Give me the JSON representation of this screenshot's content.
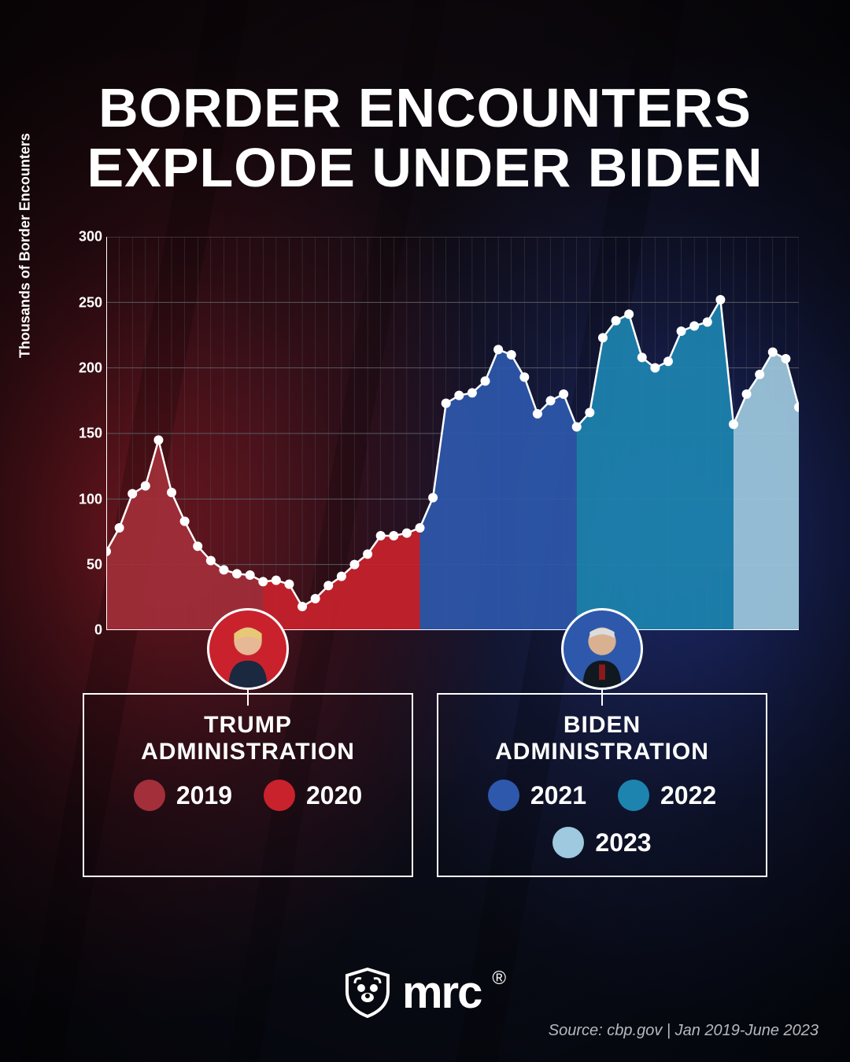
{
  "title_line1": "BORDER ENCOUNTERS",
  "title_line2": "EXPLODE UNDER BIDEN",
  "yaxis_label": "Thousands of Border Encounters",
  "chart": {
    "type": "area-line",
    "ylim": [
      0,
      300
    ],
    "yticks": [
      0,
      50,
      100,
      150,
      200,
      250,
      300
    ],
    "grid_color": "#5a5a62",
    "axis_color": "#ffffff",
    "line_color": "#ffffff",
    "marker_color": "#ffffff",
    "marker_size": 6,
    "line_width": 2.5,
    "values": [
      60,
      78,
      104,
      110,
      145,
      105,
      83,
      64,
      53,
      46,
      43,
      42,
      37,
      38,
      35,
      18,
      24,
      34,
      41,
      50,
      58,
      72,
      72,
      74,
      78,
      101,
      173,
      179,
      181,
      190,
      214,
      210,
      193,
      165,
      175,
      180,
      155,
      166,
      223,
      236,
      241,
      208,
      200,
      205,
      228,
      232,
      235,
      252,
      157,
      180,
      195,
      212,
      207,
      170
    ],
    "segments": [
      {
        "start": 0,
        "end": 12,
        "color": "#a22f3a"
      },
      {
        "start": 12,
        "end": 24,
        "color": "#c9222d"
      },
      {
        "start": 24,
        "end": 36,
        "color": "#2e58ab"
      },
      {
        "start": 36,
        "end": 48,
        "color": "#1d84b0"
      },
      {
        "start": 48,
        "end": 54,
        "color": "#9ec9de"
      }
    ],
    "fill_opacity": 0.92
  },
  "legends": [
    {
      "title": "TRUMP ADMINISTRATION",
      "avatar_bg": "#c9222d",
      "items": [
        {
          "color": "#a22f3a",
          "year": "2019"
        },
        {
          "color": "#c9222d",
          "year": "2020"
        }
      ]
    },
    {
      "title": "BIDEN ADMINISTRATION",
      "avatar_bg": "#2e58ab",
      "items": [
        {
          "color": "#2e58ab",
          "year": "2021"
        },
        {
          "color": "#1d84b0",
          "year": "2022"
        },
        {
          "color": "#9ec9de",
          "year": "2023"
        }
      ]
    }
  ],
  "logo_text": "mrc",
  "source_text": "Source: cbp.gov  |  Jan 2019-June 2023"
}
